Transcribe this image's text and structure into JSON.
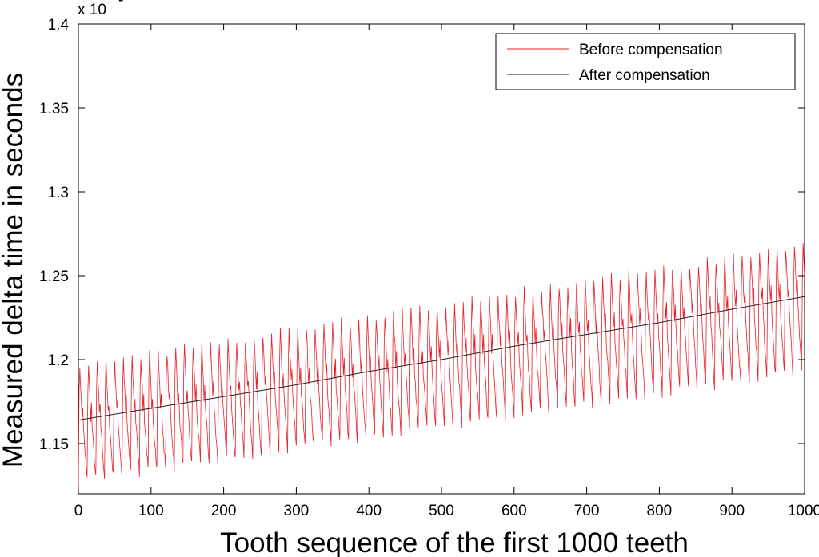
{
  "chart_data": {
    "type": "line",
    "title": "",
    "xlabel": "Tooth sequence of the first 1000 teeth",
    "ylabel": "Measured delta time in seconds",
    "y_multiplier_label": "x 10",
    "xlim": [
      0,
      1000
    ],
    "ylim": [
      1.12,
      1.4
    ],
    "x_ticks": [
      0,
      100,
      200,
      300,
      400,
      500,
      600,
      700,
      800,
      900,
      1000
    ],
    "x_tick_labels": [
      "0",
      "100",
      "200",
      "300",
      "400",
      "500",
      "600",
      "700",
      "800",
      "900",
      "1000"
    ],
    "y_ticks": [
      1.15,
      1.2,
      1.25,
      1.3,
      1.35,
      1.4
    ],
    "y_tick_labels": [
      "1.15",
      "1.2",
      "1.25",
      "1.3",
      "1.35",
      "1.4"
    ],
    "grid": false,
    "legend_position": "top-right",
    "series": [
      {
        "name": "Before compensation",
        "color": "#e8202a",
        "description_values": {
          "period_teeth": 12,
          "trend_start": 1.164,
          "trend_end": 1.2375,
          "peak_offset_start": 0.038,
          "peak_offset_end": 0.037,
          "trough_offset_start": -0.037,
          "trough_offset_end": -0.045
        }
      },
      {
        "name": "After compensation",
        "color": "#222222",
        "x": [
          0,
          100,
          200,
          300,
          400,
          500,
          600,
          700,
          800,
          900,
          1000
        ],
        "values": [
          1.164,
          1.171,
          1.178,
          1.185,
          1.193,
          1.2,
          1.208,
          1.215,
          1.222,
          1.23,
          1.2375
        ]
      }
    ]
  }
}
